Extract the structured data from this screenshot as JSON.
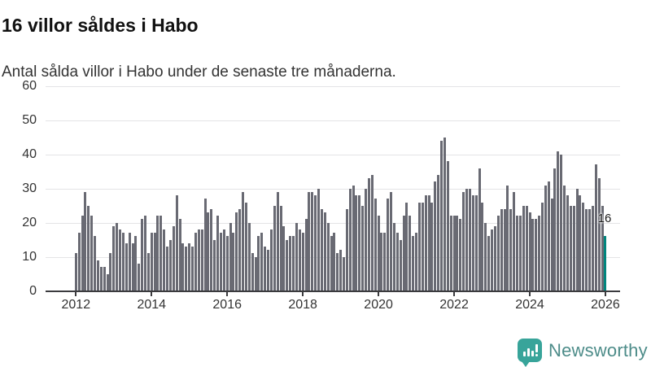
{
  "header": {
    "title": "16 villor såldes i Habo",
    "subtitle": "Antal sålda villor i Habo under de senaste tre månaderna."
  },
  "annotation": {
    "value_label": "16"
  },
  "branding": {
    "name": "Newsworthy",
    "icon": "speech-bubble-bar-chart-icon"
  },
  "colors": {
    "bar": "#696a73",
    "highlight": "#00857d",
    "axis": "#3b3b3e",
    "grid": "#e4e4e6",
    "text": "#333333",
    "title": "#111111",
    "brand_teal": "#38a49a",
    "brand_text": "#4d8c89"
  },
  "chart_data": {
    "type": "bar",
    "title": "16 villor såldes i Habo",
    "subtitle": "Antal sålda villor i Habo under de senaste tre månaderna.",
    "x_start": "2012-01",
    "x_end": "2026-01",
    "frequency": "monthly",
    "ylim": [
      0,
      60
    ],
    "yticks": [
      0,
      10,
      20,
      30,
      40,
      50,
      60
    ],
    "xticks": [
      2012,
      2014,
      2016,
      2018,
      2020,
      2022,
      2024,
      2026
    ],
    "grid": true,
    "legend": "none",
    "highlight_last_value": 16,
    "values": [
      11,
      17,
      22,
      29,
      25,
      22,
      16,
      9,
      7,
      7,
      5,
      11,
      19,
      20,
      18,
      17,
      14,
      17,
      14,
      16,
      8,
      21,
      22,
      11,
      17,
      17,
      22,
      22,
      18,
      13,
      15,
      19,
      28,
      21,
      14,
      13,
      14,
      13,
      17,
      18,
      18,
      27,
      23,
      24,
      15,
      22,
      17,
      18,
      16,
      20,
      17,
      23,
      24,
      29,
      26,
      20,
      11,
      10,
      16,
      17,
      13,
      12,
      18,
      25,
      29,
      25,
      19,
      15,
      16,
      16,
      20,
      18,
      17,
      21,
      29,
      29,
      28,
      30,
      24,
      23,
      20,
      16,
      17,
      11,
      12,
      10,
      24,
      30,
      31,
      28,
      28,
      25,
      30,
      33,
      34,
      27,
      22,
      17,
      17,
      27,
      29,
      20,
      17,
      15,
      22,
      26,
      22,
      16,
      17,
      26,
      26,
      28,
      28,
      26,
      32,
      34,
      44,
      45,
      38,
      22,
      22,
      22,
      21,
      29,
      30,
      30,
      28,
      28,
      36,
      26,
      20,
      16,
      18,
      19,
      22,
      24,
      24,
      31,
      24,
      29,
      22,
      22,
      25,
      25,
      23,
      21,
      21,
      22,
      26,
      31,
      32,
      27,
      36,
      41,
      40,
      31,
      28,
      25,
      25,
      30,
      28,
      26,
      24,
      24,
      25,
      37,
      33,
      25,
      16
    ]
  }
}
